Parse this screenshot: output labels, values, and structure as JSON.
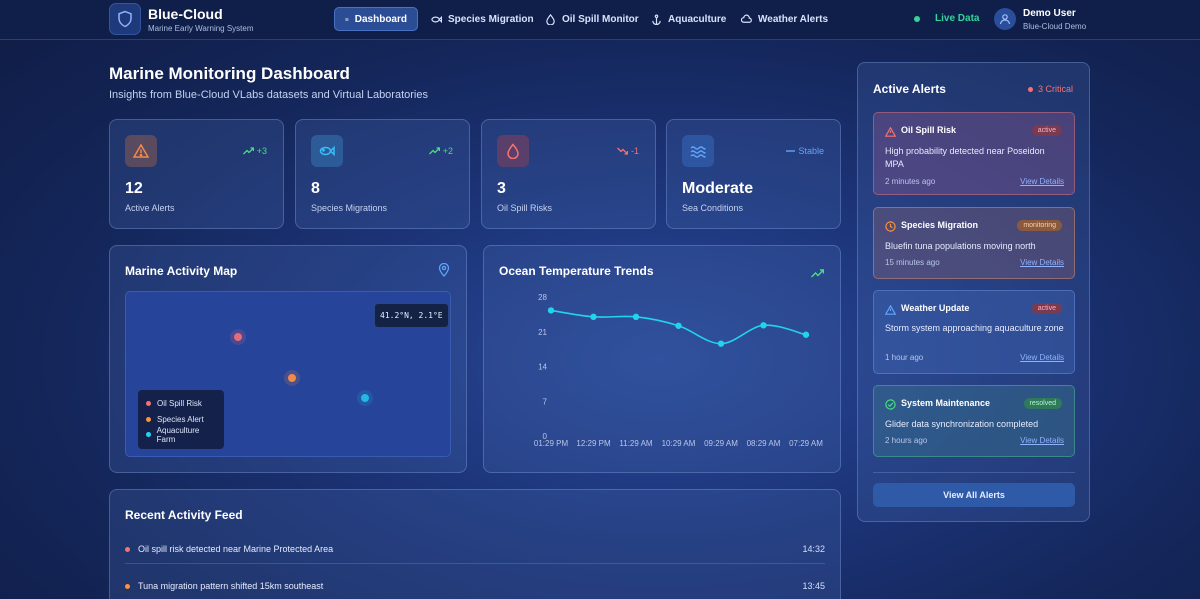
{
  "header": {
    "brand_title": "Blue-Cloud",
    "brand_subtitle": "Marine Early Warning System",
    "nav": [
      {
        "label": "Dashboard",
        "icon": "list-icon",
        "active": true
      },
      {
        "label": "Species Migration",
        "icon": "fish-icon"
      },
      {
        "label": "Oil Spill Monitor",
        "icon": "droplet-icon"
      },
      {
        "label": "Aquaculture",
        "icon": "anchor-icon"
      },
      {
        "label": "Weather Alerts",
        "icon": "cloud-icon"
      }
    ],
    "live_label": "Live Data",
    "user_name": "Demo User",
    "user_org": "Blue-Cloud Demo"
  },
  "page": {
    "title": "Marine Monitoring Dashboard",
    "subtitle": "Insights from Blue-Cloud VLabs datasets and Virtual Laboratories"
  },
  "stats": [
    {
      "value": "12",
      "label": "Active Alerts",
      "trend": "+3",
      "trend_dir": "up",
      "icon": "warning-icon",
      "color": "#f08a4b"
    },
    {
      "value": "8",
      "label": "Species Migrations",
      "trend": "+2",
      "trend_dir": "up",
      "icon": "fish-icon",
      "color": "#38bdf8"
    },
    {
      "value": "3",
      "label": "Oil Spill Risks",
      "trend": "-1",
      "trend_dir": "down",
      "icon": "droplet-icon",
      "color": "#f87171"
    },
    {
      "value": "Moderate",
      "label": "Sea Conditions",
      "trend": "Stable",
      "trend_dir": "flat",
      "icon": "waves-icon",
      "color": "#60a5fa"
    }
  ],
  "map": {
    "title": "Marine Activity Map",
    "coordinates": "41.2°N, 2.1°E",
    "legend": [
      {
        "label": "Oil Spill Risk",
        "color": "#f87171"
      },
      {
        "label": "Species Alert",
        "color": "#fb923c"
      },
      {
        "label": "Aquaculture Farm",
        "color": "#22d3ee"
      }
    ]
  },
  "trends": {
    "title": "Ocean Temperature Trends"
  },
  "chart_data": {
    "type": "line",
    "title": "Ocean Temperature Trends",
    "x": [
      "01:29 PM",
      "12:29 PM",
      "11:29 AM",
      "10:29 AM",
      "09:29 AM",
      "08:29 AM",
      "07:29 AM"
    ],
    "series": [
      {
        "values": [
          25.3,
          24,
          24,
          22.2,
          18.6,
          22.3,
          20.4
        ]
      }
    ],
    "y_ticks": [
      0,
      7,
      14,
      21,
      28
    ],
    "ylim": [
      0,
      28
    ],
    "grid": false,
    "color": "#22d3ee"
  },
  "alerts": {
    "title": "Active Alerts",
    "critical_label": "3 Critical",
    "items": [
      {
        "title": "Oil Spill Risk",
        "badge": "active",
        "desc": "High probability detected near Poseidon MPA",
        "time": "2 minutes ago",
        "link": "View Details",
        "icon": "warning-icon",
        "kind": "red"
      },
      {
        "title": "Species Migration",
        "badge": "monitoring",
        "desc": "Bluefin tuna populations moving north",
        "time": "15 minutes ago",
        "link": "View Details",
        "icon": "clock-icon",
        "kind": "orange"
      },
      {
        "title": "Weather Update",
        "badge": "active",
        "desc": "Storm system approaching aquaculture zone",
        "time": "1 hour ago",
        "link": "View Details",
        "icon": "warning-icon",
        "kind": "blue"
      },
      {
        "title": "System Maintenance",
        "badge": "resolved",
        "desc": "Glider data synchronization completed",
        "time": "2 hours ago",
        "link": "View Details",
        "icon": "check-icon",
        "kind": "green"
      }
    ],
    "view_all": "View All Alerts"
  },
  "feed": {
    "title": "Recent Activity Feed",
    "items": [
      {
        "text": "Oil spill risk detected near Marine Protected Area",
        "time": "14:32",
        "color": "#f87171"
      },
      {
        "text": "Tuna migration pattern shifted 15km southeast",
        "time": "13:45",
        "color": "#fb923c"
      }
    ]
  }
}
